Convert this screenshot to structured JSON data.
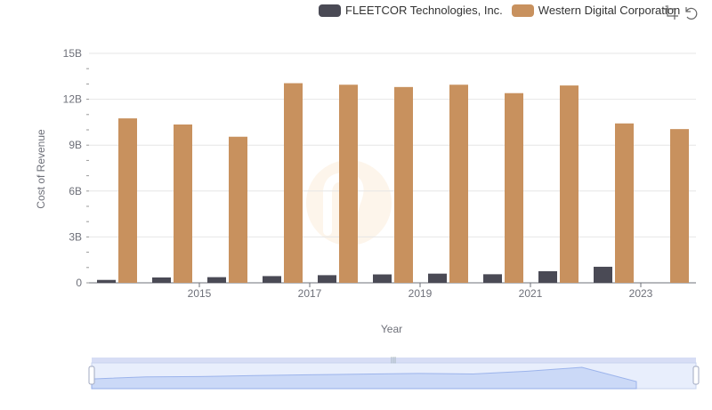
{
  "chart_data": {
    "type": "bar",
    "title": "",
    "xlabel": "Year",
    "ylabel": "Cost of Revenue",
    "ylim": [
      0,
      15000000000
    ],
    "yticks": [
      0,
      3000000000,
      6000000000,
      9000000000,
      12000000000,
      15000000000
    ],
    "ytick_labels": [
      "0",
      "3B",
      "6B",
      "9B",
      "12B",
      "15B"
    ],
    "categories": [
      "2014",
      "2015",
      "2016",
      "2017",
      "2018",
      "2019",
      "2020",
      "2021",
      "2022",
      "2023",
      "2024"
    ],
    "xtick_labels_shown": [
      "2015",
      "2017",
      "2019",
      "2021",
      "2023"
    ],
    "grid": true,
    "legend_position": "top-right",
    "series": [
      {
        "name": "FLEETCOR Technologies, Inc.",
        "color": "#4a4a55",
        "values": [
          190000000,
          350000000,
          370000000,
          440000000,
          500000000,
          550000000,
          600000000,
          560000000,
          760000000,
          1050000000,
          null
        ]
      },
      {
        "name": "Western Digital Corporation",
        "color": "#c8915e",
        "values": [
          10750000000,
          10350000000,
          9550000000,
          13050000000,
          12950000000,
          12800000000,
          12950000000,
          12400000000,
          12900000000,
          10420000000,
          10050000000
        ]
      }
    ]
  },
  "icons": {
    "tool_1": "zoom-select-icon",
    "tool_2": "zoom-reset-icon"
  }
}
